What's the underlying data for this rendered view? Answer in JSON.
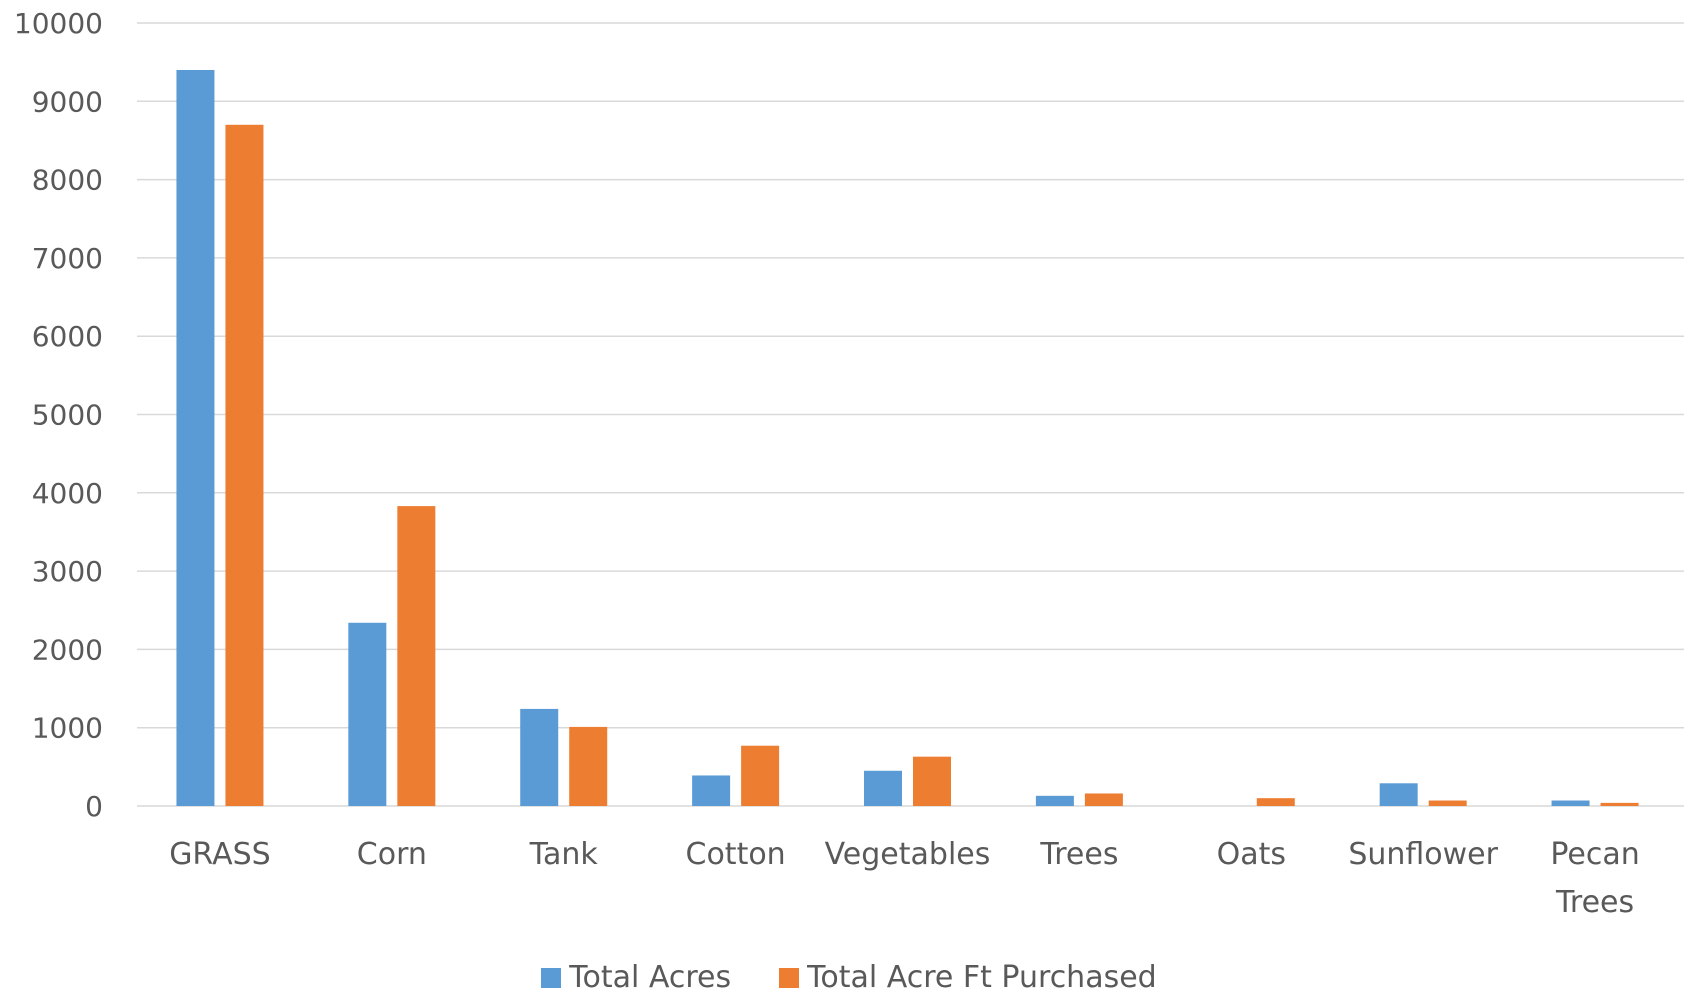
{
  "chart_data": {
    "type": "bar",
    "categories": [
      "GRASS",
      "Corn",
      "Tank",
      "Cotton",
      "Vegetables",
      "Trees",
      "Oats",
      "Sunflower",
      "Pecan Trees"
    ],
    "category_lines": [
      [
        "GRASS"
      ],
      [
        "Corn"
      ],
      [
        "Tank"
      ],
      [
        "Cotton"
      ],
      [
        "Vegetables"
      ],
      [
        "Trees"
      ],
      [
        "Oats"
      ],
      [
        "Sunflower"
      ],
      [
        "Pecan",
        "Trees"
      ]
    ],
    "series": [
      {
        "name": "Total Acres",
        "color": "#5B9BD5",
        "values": [
          9400,
          2340,
          1240,
          390,
          450,
          130,
          0,
          290,
          70
        ]
      },
      {
        "name": "Total Acre Ft Purchased",
        "color": "#ED7D31",
        "values": [
          8700,
          3830,
          1010,
          770,
          630,
          160,
          100,
          70,
          40
        ]
      }
    ],
    "y_ticks": [
      "0",
      "1000",
      "2000",
      "3000",
      "4000",
      "5000",
      "6000",
      "7000",
      "8000",
      "9000",
      "10000"
    ],
    "ylim": [
      0,
      10000
    ],
    "title": "",
    "xlabel": "",
    "ylabel": "",
    "grid": true,
    "legend_position": "bottom",
    "gridline_color": "#D9D9D9",
    "text_color": "#595959"
  }
}
